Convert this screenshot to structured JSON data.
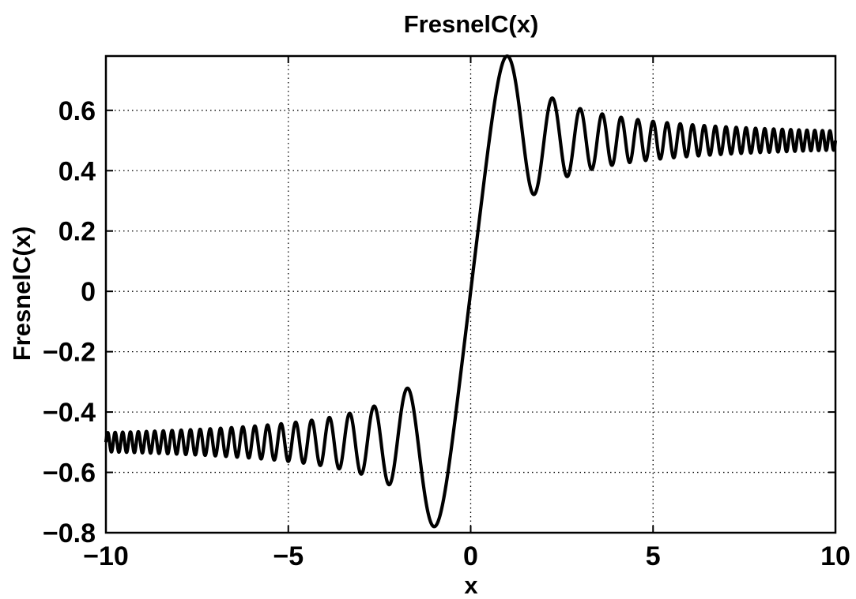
{
  "chart_data": {
    "type": "line",
    "title": "FresnelC(x)",
    "xlabel": "x",
    "ylabel": "FresnelC(x)",
    "xlim": [
      -10,
      10
    ],
    "ylim": [
      -0.8,
      0.78
    ],
    "grid": true,
    "x_ticks": [
      -10,
      -5,
      0,
      5,
      10
    ],
    "x_tick_labels": [
      "−10",
      "−5",
      "0",
      "5",
      "10"
    ],
    "y_ticks": [
      -0.8,
      -0.6,
      -0.4,
      -0.2,
      0,
      0.2,
      0.4,
      0.6
    ],
    "y_tick_labels": [
      "−0.8",
      "−0.6",
      "−0.4",
      "−0.2",
      "0",
      "0.2",
      "0.4",
      "0.6"
    ],
    "series": [
      {
        "function": "FresnelC",
        "x_range": [
          -10,
          10
        ],
        "samples": 4000,
        "color": "#000000",
        "extrema": [
          {
            "x": -1.0,
            "y": -0.7799
          },
          {
            "x": -1.732,
            "y": -0.3212
          },
          {
            "x": 0,
            "y": 0
          },
          {
            "x": 1.0,
            "y": 0.7799
          },
          {
            "x": 1.732,
            "y": 0.3212
          },
          {
            "x": 2.236,
            "y": 0.6389
          },
          {
            "x": 10,
            "y": 0.4999
          }
        ]
      }
    ]
  }
}
